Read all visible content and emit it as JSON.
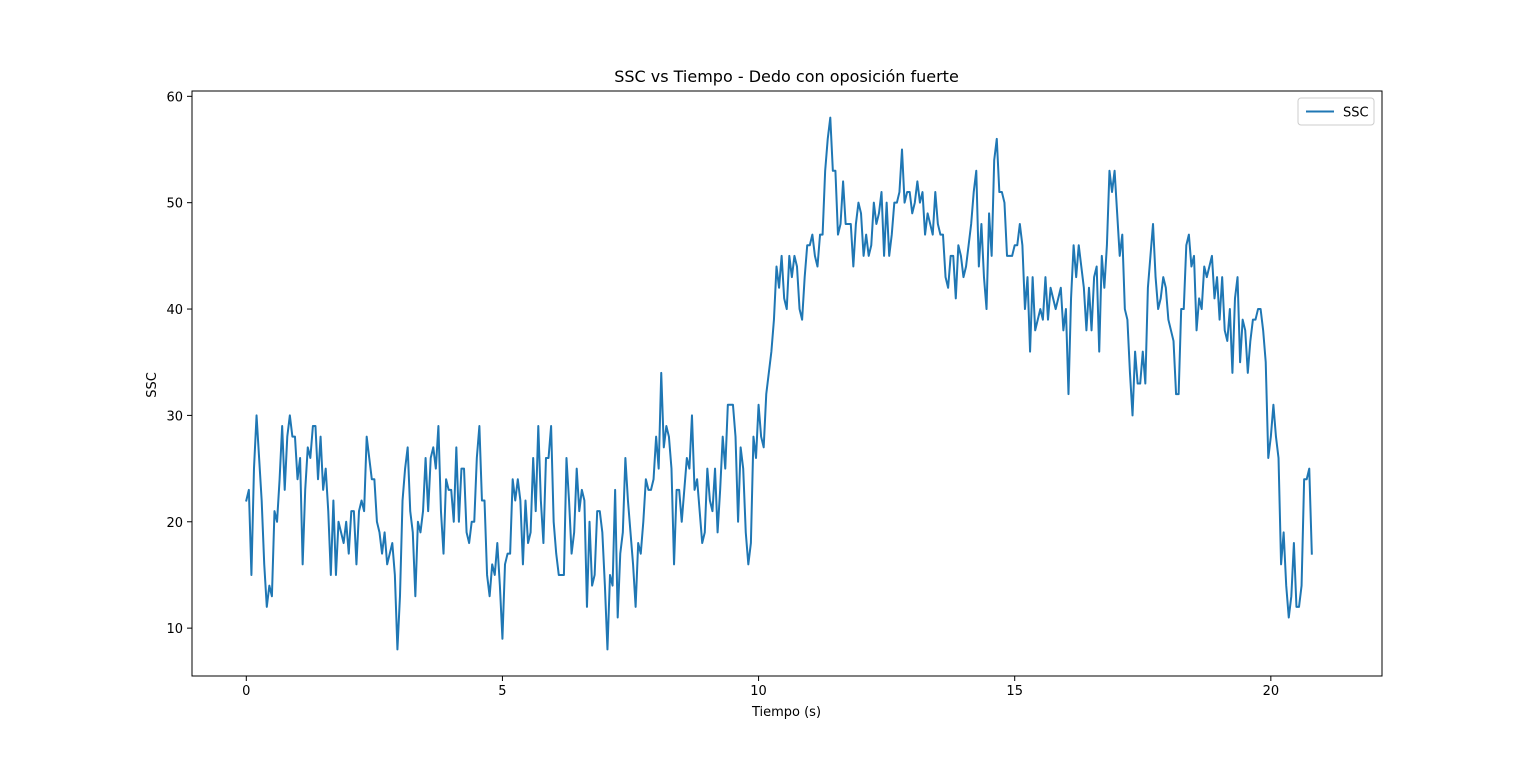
{
  "chart_data": {
    "type": "line",
    "title": "SSC vs Tiempo - Dedo con oposición fuerte",
    "xlabel": "Tiempo (s)",
    "ylabel": "SSC",
    "xlim": [
      -1.06,
      22.17
    ],
    "ylim": [
      5.5,
      60.5
    ],
    "xticks": [
      0,
      5,
      10,
      15,
      20
    ],
    "yticks": [
      10,
      20,
      30,
      40,
      50,
      60
    ],
    "grid": false,
    "legend": {
      "position": "top-right",
      "entries": [
        "SSC"
      ]
    },
    "colors": {
      "series": "#1f77b4",
      "axes": "#000000",
      "background": "#ffffff"
    },
    "x_step": 0.05,
    "series": [
      {
        "name": "SSC",
        "values": [
          22,
          23,
          15,
          25,
          30,
          26,
          22,
          16,
          12,
          14,
          13,
          21,
          20,
          24,
          29,
          23,
          28,
          30,
          28,
          28,
          24,
          26,
          16,
          23,
          27,
          26,
          29,
          29,
          24,
          28,
          23,
          25,
          21,
          15,
          22,
          15,
          20,
          19,
          18,
          20,
          17,
          21,
          21,
          16,
          21,
          22,
          21,
          28,
          26,
          24,
          24,
          20,
          19,
          17,
          19,
          16,
          17,
          18,
          15,
          8,
          13,
          22,
          25,
          27,
          21,
          19,
          13,
          20,
          19,
          21,
          26,
          21,
          26,
          27,
          25,
          29,
          21,
          17,
          24,
          23,
          23,
          20,
          27,
          20,
          25,
          25,
          19,
          18,
          20,
          20,
          26,
          29,
          22,
          22,
          15,
          13,
          16,
          15,
          18,
          14,
          9,
          16,
          17,
          17,
          24,
          22,
          24,
          22,
          16,
          22,
          18,
          19,
          26,
          21,
          29,
          22,
          18,
          26,
          26,
          29,
          20,
          17,
          15,
          15,
          15,
          26,
          22,
          17,
          19,
          25,
          21,
          23,
          22,
          12,
          20,
          14,
          15,
          21,
          21,
          19,
          14,
          8,
          15,
          14,
          23,
          11,
          17,
          19,
          26,
          22,
          19,
          16,
          12,
          18,
          17,
          20,
          24,
          23,
          23,
          24,
          28,
          25,
          34,
          27,
          29,
          28,
          25,
          16,
          23,
          23,
          20,
          23,
          26,
          25,
          30,
          23,
          24,
          21,
          18,
          19,
          25,
          22,
          21,
          25,
          19,
          23,
          28,
          25,
          31,
          31,
          31,
          28,
          20,
          27,
          25,
          19,
          16,
          18,
          28,
          26,
          31,
          28,
          27,
          32,
          34,
          36,
          39,
          44,
          42,
          45,
          41,
          40,
          45,
          43,
          45,
          44,
          40,
          39,
          43,
          46,
          46,
          47,
          45,
          44,
          47,
          47,
          53,
          56,
          58,
          53,
          53,
          47,
          48,
          52,
          48,
          48,
          48,
          44,
          48,
          50,
          49,
          45,
          47,
          45,
          46,
          50,
          48,
          49,
          51,
          45,
          50,
          45,
          47,
          50,
          50,
          51,
          55,
          50,
          51,
          51,
          49,
          50,
          52,
          50,
          51,
          47,
          49,
          48,
          47,
          51,
          48,
          47,
          47,
          43,
          42,
          45,
          45,
          41,
          46,
          45,
          43,
          44,
          46,
          48,
          51,
          53,
          44,
          48,
          43,
          40,
          49,
          45,
          54,
          56,
          51,
          51,
          50,
          45,
          45,
          45,
          46,
          46,
          48,
          46,
          40,
          43,
          36,
          43,
          38,
          39,
          40,
          39,
          43,
          39,
          42,
          41,
          40,
          41,
          42,
          38,
          40,
          32,
          41,
          46,
          43,
          46,
          44,
          42,
          38,
          42,
          38,
          43,
          44,
          36,
          45,
          42,
          46,
          53,
          51,
          53,
          49,
          45,
          47,
          40,
          39,
          34,
          30,
          36,
          33,
          33,
          36,
          33,
          42,
          45,
          48,
          43,
          40,
          41,
          43,
          42,
          39,
          38,
          37,
          32,
          32,
          40,
          40,
          46,
          47,
          44,
          45,
          38,
          41,
          40,
          44,
          43,
          44,
          45,
          41,
          43,
          39,
          43,
          38,
          37,
          40,
          34,
          41,
          43,
          35,
          39,
          38,
          34,
          37,
          39,
          39,
          40,
          40,
          38,
          35,
          26,
          28,
          31,
          28,
          26,
          16,
          19,
          14,
          11,
          13,
          18,
          12,
          12,
          14,
          24,
          24,
          25,
          17
        ]
      }
    ]
  }
}
